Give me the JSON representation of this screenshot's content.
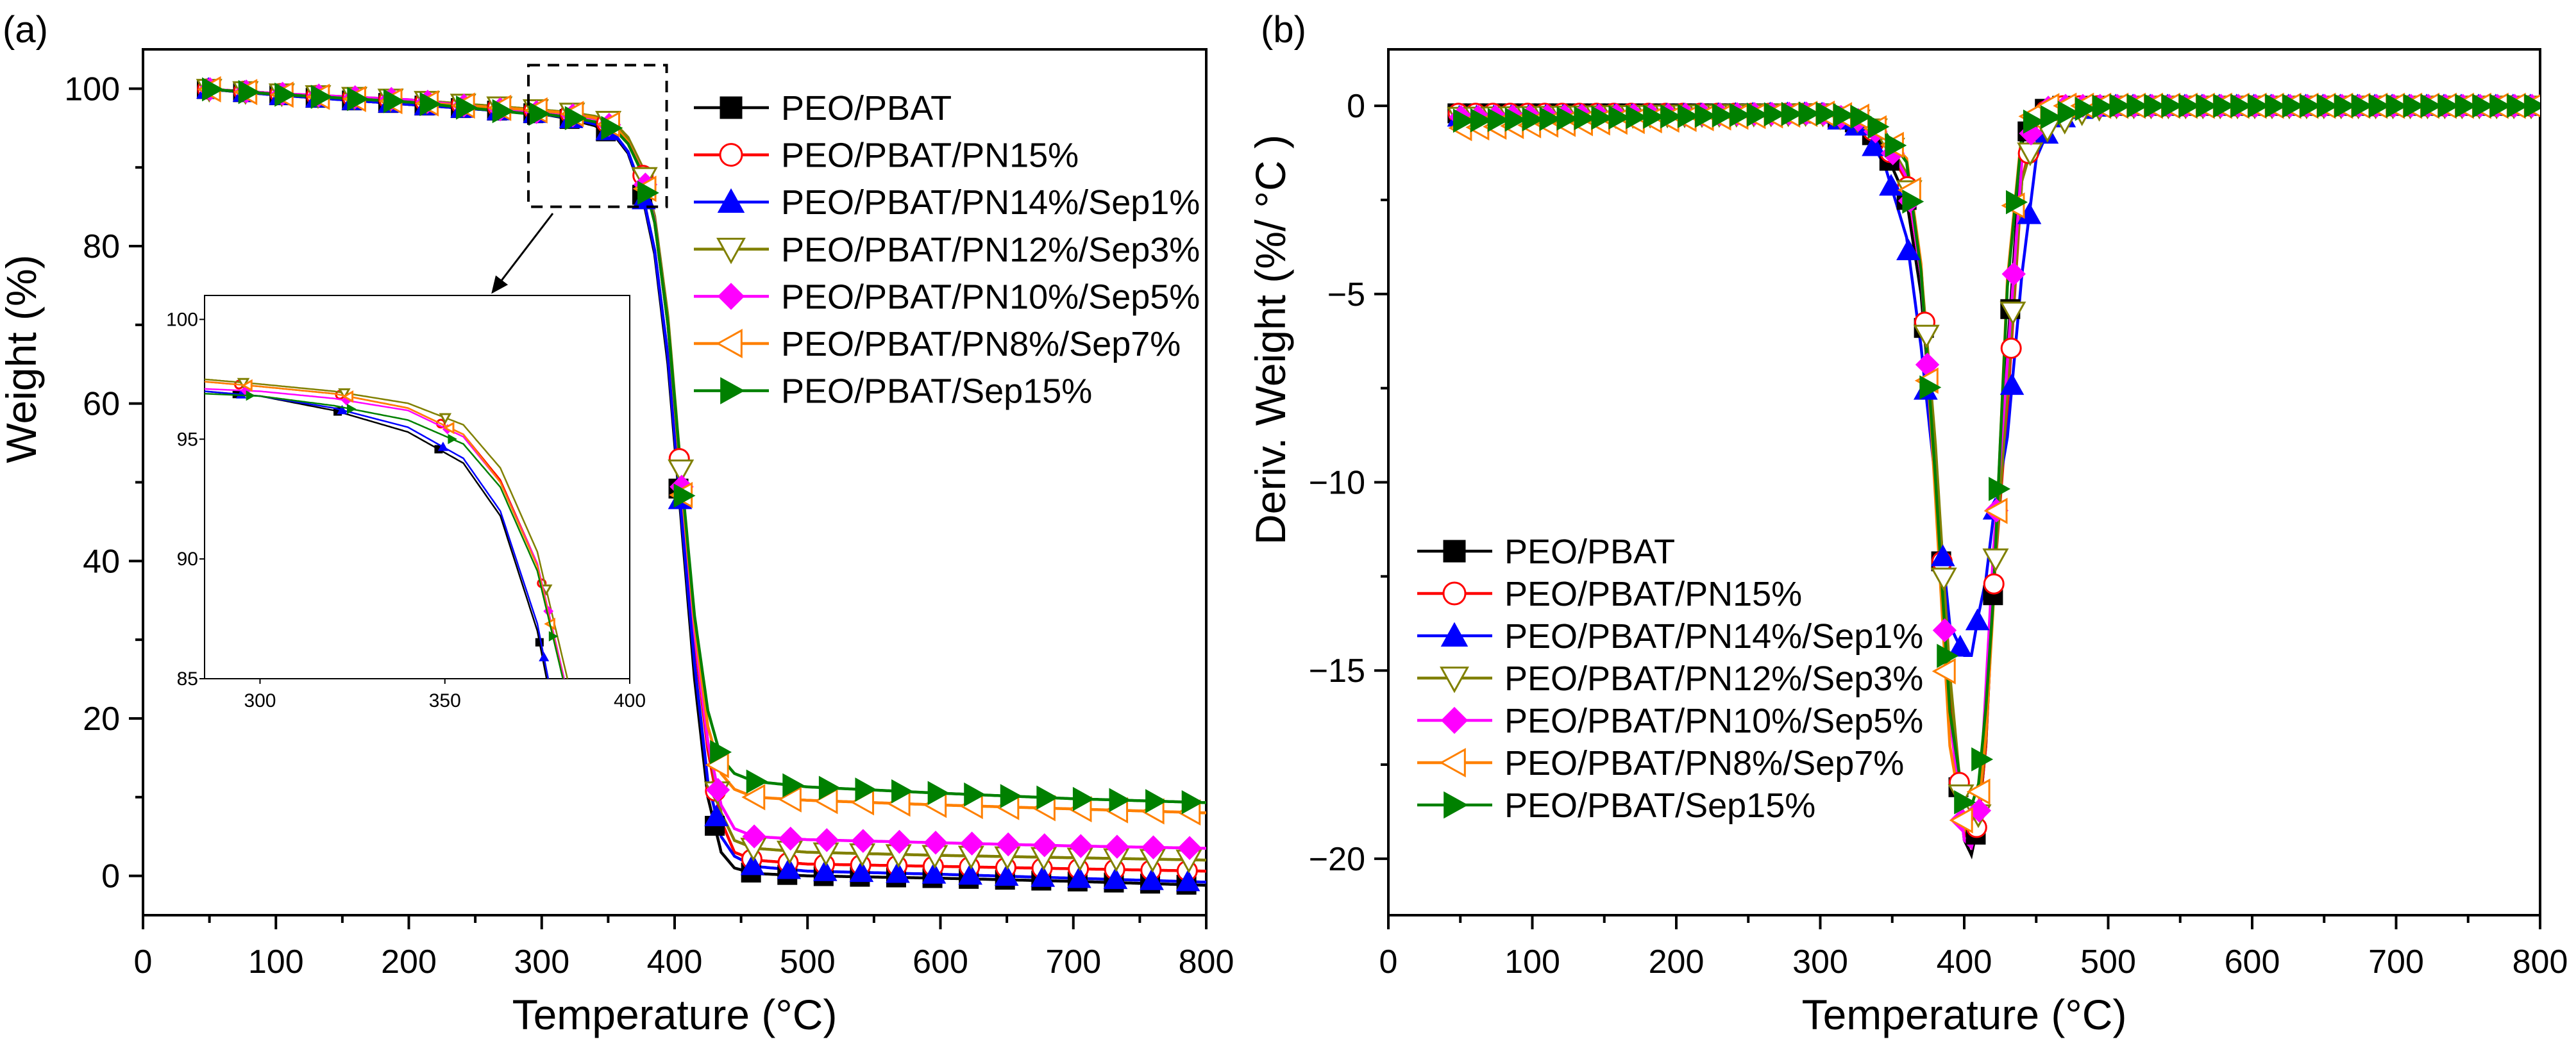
{
  "chart_data": [
    {
      "panel_label": "(a)",
      "type": "line",
      "xlabel": "Temperature (°C)",
      "ylabel": "Weight (%)",
      "xlim": [
        0,
        800
      ],
      "ylim": [
        -5,
        105
      ],
      "xticks": [
        "0",
        "100",
        "200",
        "300",
        "400",
        "500",
        "600",
        "700",
        "800"
      ],
      "yticks": [
        "0",
        "20",
        "40",
        "60",
        "80",
        "100"
      ],
      "grid": false,
      "legend_position": "top-right",
      "x": [
        45,
        100,
        200,
        285,
        300,
        320,
        340,
        355,
        365,
        375,
        385,
        395,
        405,
        415,
        425,
        435,
        445,
        460,
        500,
        600,
        700,
        800
      ],
      "series": [
        {
          "name": "PEO/PBAT",
          "color": "#000000",
          "marker": "square-filled",
          "values": [
            100,
            99.2,
            98,
            97.0,
            96.8,
            96.2,
            95.3,
            94.0,
            91.8,
            87,
            79,
            65,
            45,
            25,
            10,
            3,
            1,
            0.3,
            0,
            -0.3,
            -0.7,
            -1.2
          ]
        },
        {
          "name": "PEO/PBAT/PN15%",
          "color": "#ff0000",
          "marker": "circle-open",
          "values": [
            100,
            99.4,
            98.5,
            97.4,
            97.2,
            96.9,
            96.3,
            95.2,
            93.3,
            89.8,
            83,
            70,
            50,
            30,
            16,
            7,
            3,
            2,
            1.5,
            1.2,
            0.9,
            0.6
          ]
        },
        {
          "name": "PEO/PBAT/PN14%/Sep1%",
          "color": "#0000ff",
          "marker": "triangle-up-filled",
          "values": [
            100,
            99.2,
            98,
            97.0,
            96.8,
            96.3,
            95.5,
            94.2,
            92,
            87.3,
            79.5,
            66,
            46,
            27,
            12,
            5,
            2.5,
            1.2,
            0.6,
            0.2,
            -0.3,
            -0.8
          ]
        },
        {
          "name": "PEO/PBAT/PN12%/Sep3%",
          "color": "#808000",
          "marker": "triangle-down-open",
          "values": [
            100,
            99.4,
            98.6,
            97.5,
            97.3,
            97.0,
            96.5,
            95.6,
            93.8,
            90.3,
            83.8,
            71,
            51,
            31,
            17,
            8,
            4.5,
            3.5,
            3,
            2.6,
            2.3,
            2
          ]
        },
        {
          "name": "PEO/PBAT/PN10%/Sep5%",
          "color": "#ff00ff",
          "marker": "diamond-filled",
          "values": [
            100,
            99.4,
            98.6,
            97.1,
            97.0,
            96.7,
            96.2,
            95.1,
            93.2,
            89.8,
            83.2,
            70,
            50,
            31,
            17,
            9,
            6,
            5,
            4.6,
            4.2,
            3.8,
            3.5
          ]
        },
        {
          "name": "PEO/PBAT/PN8%/Sep7%",
          "color": "#ff8000",
          "marker": "triangle-left-open",
          "values": [
            100,
            99.3,
            98.3,
            97.4,
            97.2,
            96.9,
            96.3,
            95.2,
            93.2,
            89.7,
            83,
            70,
            50,
            32,
            19,
            13,
            11,
            10,
            9.6,
            9,
            8.5,
            8
          ]
        },
        {
          "name": "PEO/PBAT/Sep15%",
          "color": "#008000",
          "marker": "triangle-right-filled",
          "values": [
            100,
            99.3,
            98.3,
            96.9,
            96.8,
            96.4,
            95.8,
            94.8,
            93,
            89.5,
            83,
            70,
            51,
            33,
            21,
            15,
            13,
            12,
            11.3,
            10.5,
            9.8,
            9.3
          ]
        }
      ],
      "zoom_box": {
        "xlim": [
          290,
          394
        ],
        "ylim": [
          85,
          103
        ]
      },
      "inset": {
        "xlim": [
          285,
          400
        ],
        "ylim": [
          85,
          101
        ],
        "xticks": [
          "300",
          "350",
          "400"
        ],
        "yticks": [
          "85",
          "90",
          "95",
          "100"
        ]
      }
    },
    {
      "panel_label": "(b)",
      "type": "line",
      "xlabel": "Temperature (°C)",
      "ylabel": "Deriv. Weight (%/ °C )",
      "xlim": [
        0,
        800
      ],
      "ylim": [
        -21.5,
        1.5
      ],
      "xticks": [
        "0",
        "100",
        "200",
        "300",
        "400",
        "500",
        "600",
        "700",
        "800"
      ],
      "yticks": [
        "0",
        "−5",
        "−10",
        "−15",
        "−20"
      ],
      "grid": false,
      "legend_position": "bottom-left",
      "x": [
        45,
        300,
        330,
        345,
        360,
        370,
        380,
        390,
        400,
        405,
        410,
        415,
        420,
        430,
        440,
        450,
        460,
        480,
        500,
        800
      ],
      "series": [
        {
          "name": "PEO/PBAT",
          "color": "#000000",
          "marker": "square-filled",
          "values": [
            -0.2,
            -0.2,
            -0.5,
            -1.2,
            -2.5,
            -5,
            -9.5,
            -16,
            -19.5,
            -19.9,
            -19,
            -17,
            -13,
            -6.5,
            -1,
            -0.2,
            0,
            0,
            0,
            0
          ]
        },
        {
          "name": "PEO/PBAT/PN15%",
          "color": "#ff0000",
          "marker": "circle-open",
          "values": [
            -0.2,
            -0.2,
            -0.4,
            -1,
            -2,
            -4.5,
            -9.3,
            -15.4,
            -19.3,
            -19.6,
            -19,
            -17,
            -13,
            -8,
            -2,
            -0.4,
            0,
            0,
            0,
            0
          ]
        },
        {
          "name": "PEO/PBAT/PN14%/Sep1%",
          "color": "#0000ff",
          "marker": "triangle-up-filled",
          "values": [
            -0.3,
            -0.2,
            -0.6,
            -1.6,
            -3.5,
            -6.4,
            -10,
            -13.8,
            -14.6,
            -14.6,
            -13.5,
            -12.6,
            -11,
            -8.8,
            -4.5,
            -1.4,
            -0.5,
            -0.1,
            0,
            0
          ]
        },
        {
          "name": "PEO/PBAT/PN12%/Sep3%",
          "color": "#808000",
          "marker": "triangle-down-open",
          "values": [
            -0.3,
            -0.2,
            -0.4,
            -0.8,
            -1.8,
            -4.3,
            -9,
            -15.1,
            -19.2,
            -19.5,
            -18.8,
            -16.8,
            -13,
            -7.6,
            -2,
            -0.7,
            -0.6,
            -0.2,
            0,
            0
          ]
        },
        {
          "name": "PEO/PBAT/PN10%/Sep5%",
          "color": "#ff00ff",
          "marker": "diamond-filled",
          "values": [
            -0.3,
            -0.2,
            -0.4,
            -0.9,
            -1.9,
            -4.5,
            -9.9,
            -16.2,
            -19.5,
            -19.7,
            -19,
            -15.5,
            -12,
            -6.8,
            -1.5,
            -0.3,
            0,
            0,
            0,
            0
          ]
        },
        {
          "name": "PEO/PBAT/PN8%/Sep7%",
          "color": "#ff8000",
          "marker": "triangle-left-open",
          "values": [
            -0.6,
            -0.2,
            -0.3,
            -0.8,
            -1.4,
            -4.2,
            -10.4,
            -17,
            -19.2,
            -19.4,
            -18.6,
            -16.7,
            -13.4,
            -4.6,
            -0.7,
            -0.1,
            0,
            0,
            0,
            0
          ]
        },
        {
          "name": "PEO/PBAT/Sep15%",
          "color": "#008000",
          "marker": "triangle-right-filled",
          "values": [
            -0.4,
            -0.2,
            -0.3,
            -0.7,
            -1.5,
            -4.4,
            -9.9,
            -16.1,
            -18.6,
            -18.6,
            -18,
            -16,
            -13.2,
            -4.8,
            -0.8,
            -0.3,
            -0.3,
            -0.1,
            0,
            0
          ]
        }
      ]
    }
  ]
}
